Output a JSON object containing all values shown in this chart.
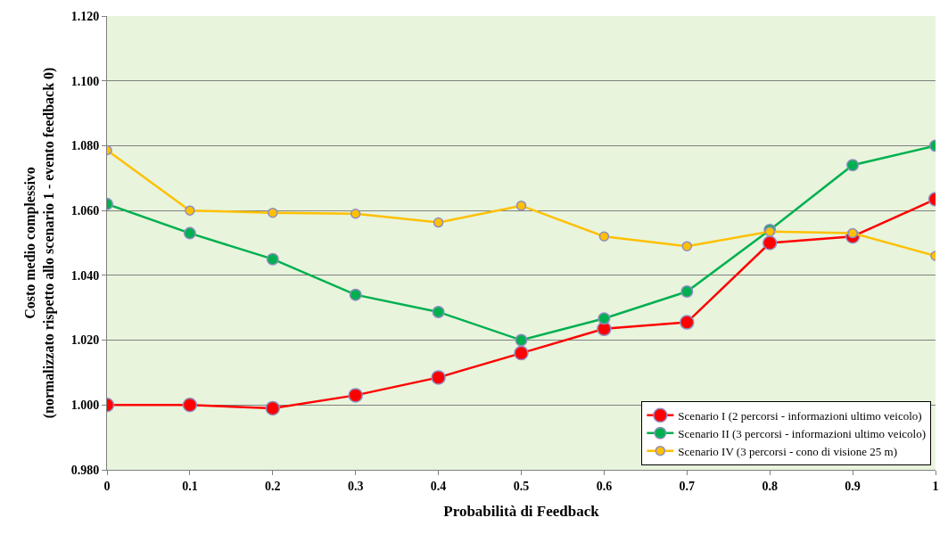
{
  "chart_data": {
    "type": "line",
    "xlabel": "Probabilità di Feedback",
    "ylabel": "Costo medio complessivo\n(normalizzato rispetto allo scenario 1 - evento feedback 0)",
    "x": [
      0,
      0.1,
      0.2,
      0.3,
      0.4,
      0.5,
      0.6,
      0.7,
      0.8,
      0.9,
      1
    ],
    "series": [
      {
        "name": "Scenario I (2 percorsi - informazioni ultimo veicolo)",
        "color": "#ff0000",
        "values": [
          1.0,
          1.0,
          0.999,
          1.003,
          1.0085,
          1.016,
          1.0235,
          1.0255,
          1.05,
          1.052,
          1.0635
        ]
      },
      {
        "name": "Scenario II (3 percorsi - informazioni ultimo veicolo)",
        "color": "#00b050",
        "values": [
          1.062,
          1.053,
          1.045,
          1.034,
          1.0287,
          1.02,
          1.0267,
          1.035,
          1.054,
          1.074,
          1.08
        ]
      },
      {
        "name": "Scenario IV (3 percorsi - cono di visione 25 m)",
        "color": "#ffc000",
        "values": [
          1.0786,
          1.06,
          1.0593,
          1.059,
          1.0563,
          1.0615,
          1.052,
          1.049,
          1.0535,
          1.053,
          1.046
        ]
      }
    ],
    "xlim": [
      0,
      1
    ],
    "xticks": [
      0,
      0.1,
      0.2,
      0.3,
      0.4,
      0.5,
      0.6,
      0.7,
      0.8,
      0.9,
      1
    ],
    "ylim": [
      0.98,
      1.12
    ],
    "yticks": [
      {
        "value": 0.98,
        "label": "0.980"
      },
      {
        "value": 1.0,
        "label": "1.000"
      },
      {
        "value": 1.02,
        "label": "1.020"
      },
      {
        "value": 1.04,
        "label": "1.040"
      },
      {
        "value": 1.06,
        "label": "1.060"
      },
      {
        "value": 1.08,
        "label": "1.080"
      },
      {
        "value": 1.1,
        "label": "1.100"
      },
      {
        "value": 1.12,
        "label": "1.120"
      }
    ],
    "grid": "y",
    "legend": "bottom right",
    "marker": "circle",
    "line_style": "solid"
  }
}
